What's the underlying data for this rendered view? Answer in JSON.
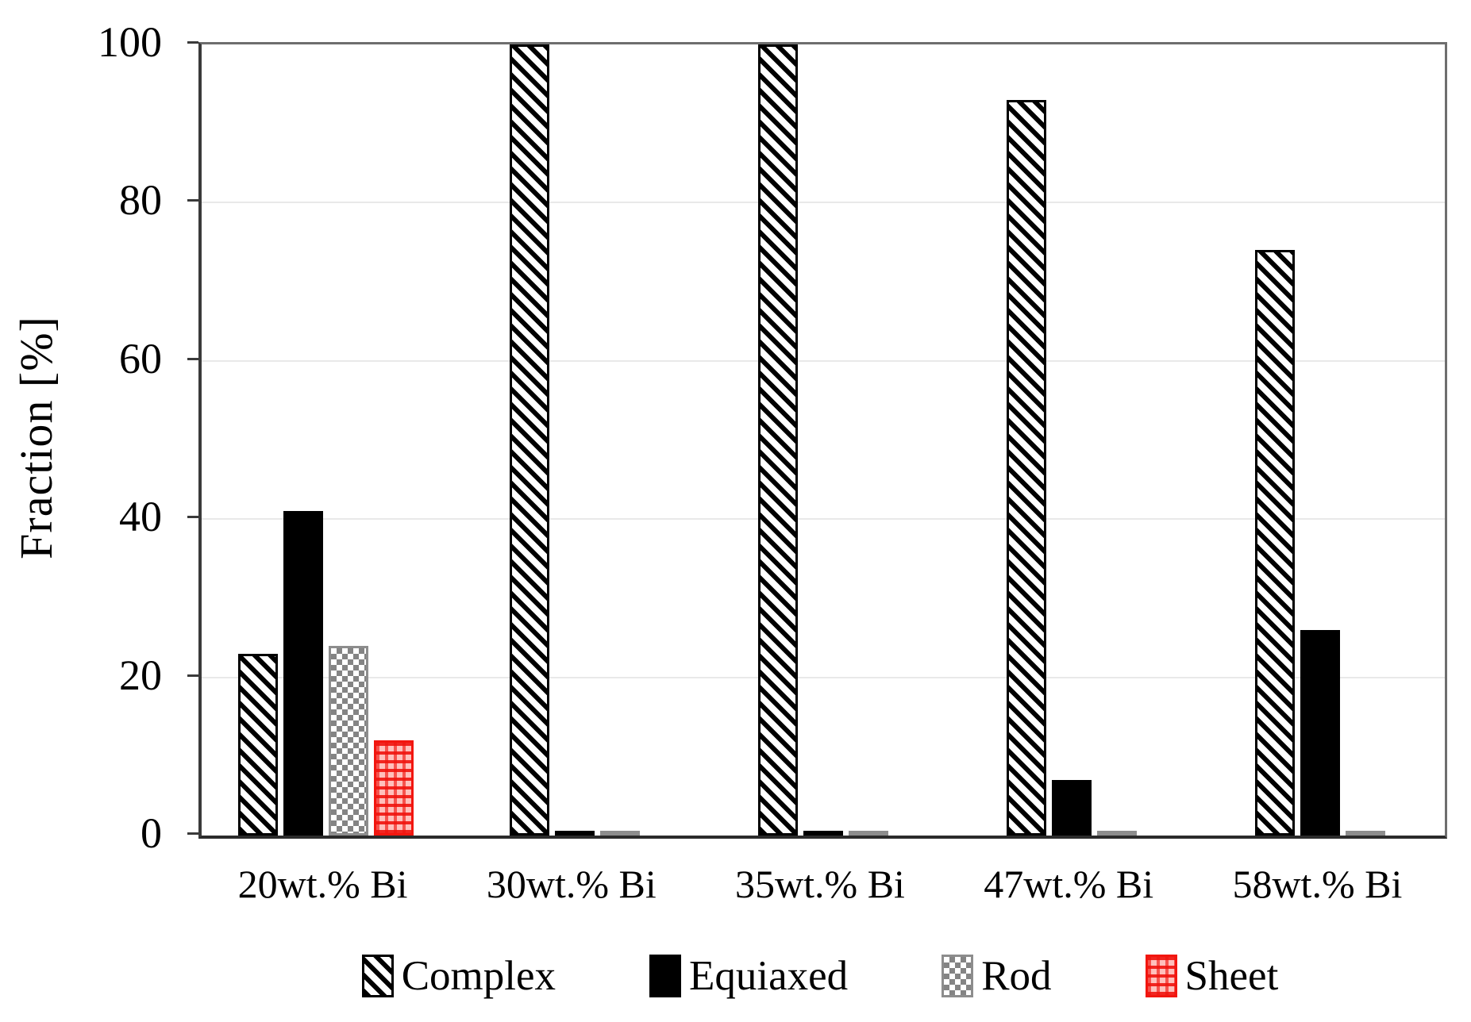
{
  "figure": {
    "ylabel": "Fraction [%]"
  },
  "chart_data": {
    "type": "bar",
    "title": "",
    "xlabel": "",
    "ylabel": "Fraction [%]",
    "ylim": [
      0,
      100
    ],
    "yticks": [
      0,
      20,
      40,
      60,
      80,
      100
    ],
    "grid": "horizontal, light gray, at 20/40/60/80",
    "legend_position": "bottom",
    "categories": [
      "20wt.% Bi",
      "30wt.% Bi",
      "35wt.% Bi",
      "47wt.% Bi",
      "58wt.% Bi"
    ],
    "series": [
      {
        "name": "Complex",
        "pattern": "diagonal-hatch",
        "color": "#000000",
        "values": [
          23,
          100,
          100,
          93,
          74
        ]
      },
      {
        "name": "Equiaxed",
        "pattern": "solid",
        "color": "#000000",
        "values": [
          41,
          0.5,
          0.5,
          7,
          26
        ]
      },
      {
        "name": "Rod",
        "pattern": "checker",
        "color": "#848484",
        "values": [
          24,
          0.5,
          0.5,
          0.5,
          0.5
        ]
      },
      {
        "name": "Sheet",
        "pattern": "red-grid",
        "color": "#f2160f",
        "values": [
          12,
          0,
          0,
          0,
          0
        ]
      }
    ]
  }
}
